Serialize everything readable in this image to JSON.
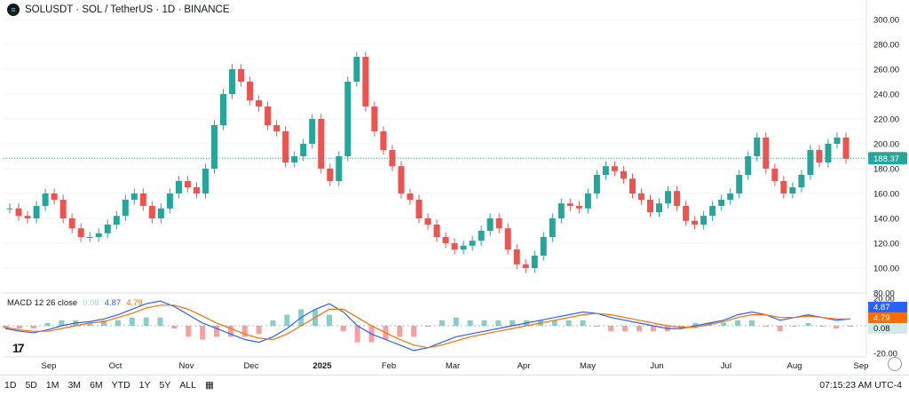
{
  "header": {
    "logo_text": "≡",
    "title": "SOLUSDT · SOL / TetherUS · 1D · BINANCE"
  },
  "macd_legend": {
    "name": "MACD 12 26 close",
    "hist": "0.08",
    "macd": "4.87",
    "signal": "4.79"
  },
  "bottom": {
    "ranges": [
      "1D",
      "5D",
      "1M",
      "3M",
      "6M",
      "YTD",
      "1Y",
      "5Y",
      "ALL"
    ],
    "clock": "07:15:23 AM UTC-4"
  },
  "colors": {
    "up": "#26a69a",
    "down": "#ef5350",
    "macd": "#2962ff",
    "signal": "#ff6d00",
    "price_badge": "#26a69a"
  },
  "chart_data": [
    {
      "type": "line",
      "title": "",
      "series": [
        {
          "name": "",
          "values": [
            148,
            142,
            140,
            150,
            160,
            155,
            140,
            132,
            125,
            125,
            128,
            135,
            142,
            155,
            160,
            150,
            140,
            148,
            160,
            170,
            165,
            160,
            180,
            215,
            240,
            260,
            250,
            235,
            230,
            215,
            210,
            185,
            190,
            200,
            220,
            180,
            170,
            190,
            250,
            270,
            230,
            210,
            195,
            182,
            160,
            155,
            140,
            135,
            125,
            120,
            115,
            118,
            122,
            130,
            140,
            132,
            115,
            103,
            100,
            110,
            125,
            140,
            152,
            150,
            148,
            160,
            175,
            182,
            178,
            172,
            160,
            155,
            145,
            152,
            162,
            150,
            138,
            135,
            142,
            150,
            155,
            160,
            175,
            190,
            205,
            180,
            170,
            160,
            165,
            175,
            195,
            185,
            200,
            205,
            188
          ]
        }
      ],
      "ylim": [
        80,
        300
      ],
      "y_ticks": [
        "300.00",
        "280.00",
        "260.00",
        "240.00",
        "220.00",
        "200.00",
        "180.00",
        "160.00",
        "140.00",
        "120.00",
        "100.00",
        "80.00"
      ],
      "x_ticks": [
        "Sep",
        "Oct",
        "Nov",
        "Dec",
        "2025",
        "Feb",
        "Mar",
        "Apr",
        "May",
        "Jun",
        "Jul",
        "Aug",
        "Sep"
      ],
      "last_price": "188.37"
    },
    {
      "type": "line",
      "title": "",
      "series": [
        {
          "name": "MACD",
          "values": [
            -2,
            -4,
            -5,
            -3,
            0,
            2,
            3,
            5,
            8,
            12,
            16,
            18,
            14,
            8,
            2,
            -2,
            -6,
            -10,
            -12,
            -8,
            -2,
            6,
            12,
            16,
            10,
            0,
            -6,
            -10,
            -14,
            -18,
            -16,
            -12,
            -8,
            -6,
            -4,
            -2,
            0,
            2,
            4,
            6,
            8,
            10,
            9,
            6,
            4,
            2,
            0,
            -2,
            -2,
            0,
            2,
            4,
            8,
            10,
            8,
            4,
            6,
            8,
            6,
            4,
            5
          ]
        },
        {
          "name": "Signal",
          "values": [
            -1,
            -3,
            -4,
            -4,
            -2,
            0,
            2,
            3,
            6,
            9,
            13,
            15,
            15,
            12,
            7,
            2,
            -2,
            -6,
            -9,
            -10,
            -6,
            0,
            6,
            12,
            12,
            6,
            0,
            -5,
            -10,
            -14,
            -16,
            -14,
            -11,
            -8,
            -6,
            -4,
            -2,
            0,
            2,
            4,
            6,
            8,
            9,
            8,
            6,
            4,
            2,
            0,
            -1,
            -1,
            1,
            3,
            6,
            8,
            8,
            6,
            6,
            7,
            6,
            5,
            5
          ]
        }
      ],
      "ylim": [
        -20,
        20
      ],
      "y_ticks": [
        "20.00",
        "-20.00"
      ]
    }
  ]
}
